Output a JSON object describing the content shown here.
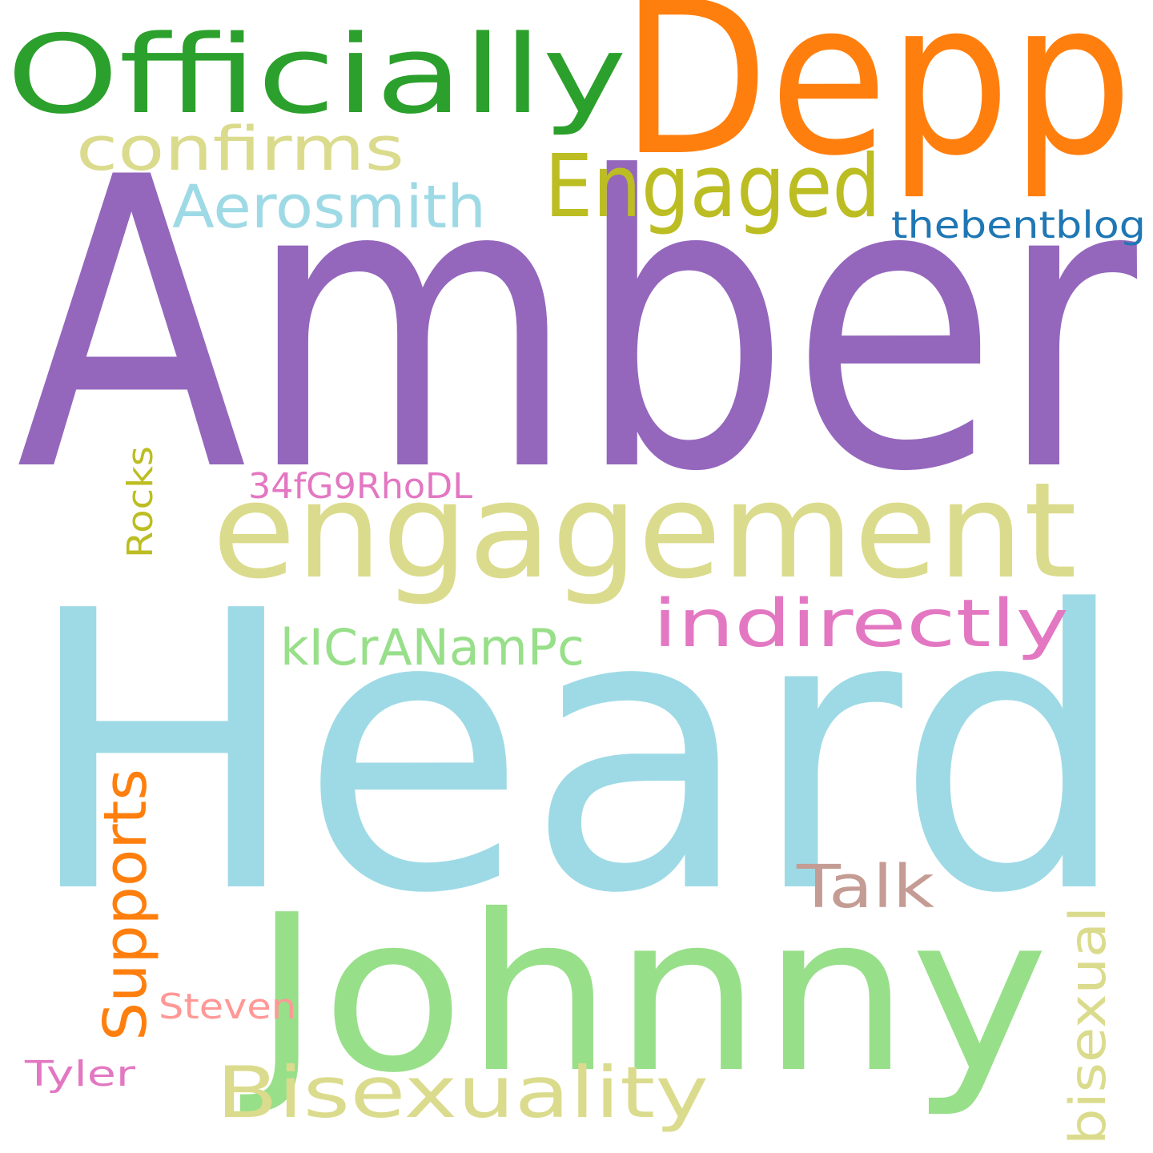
{
  "words": {
    "amber": {
      "text": "Amber",
      "color": "#9467bd"
    },
    "heard": {
      "text": "Heard",
      "color": "#9edae5"
    },
    "depp": {
      "text": "Depp",
      "color": "#ff7f0e"
    },
    "officially": {
      "text": "Officially",
      "color": "#2ca02c"
    },
    "johnny": {
      "text": "Johnny",
      "color": "#98df8a"
    },
    "engagement": {
      "text": "engagement",
      "color": "#dbdb8d"
    },
    "engaged": {
      "text": "Engaged",
      "color": "#bcbd22"
    },
    "confirms": {
      "text": "confirms",
      "color": "#dbdb8d"
    },
    "aerosmith": {
      "text": "Aerosmith",
      "color": "#9edae5"
    },
    "thebentblog": {
      "text": "thebentblog",
      "color": "#1f77b4"
    },
    "indirectly": {
      "text": "indirectly",
      "color": "#e377c2"
    },
    "kicranampc": {
      "text": "kICrANamPc",
      "color": "#98df8a"
    },
    "34fg9rhodl": {
      "text": "34fG9RhoDL",
      "color": "#e377c2"
    },
    "talk": {
      "text": "Talk",
      "color": "#c49c94"
    },
    "bisexuality": {
      "text": "Bisexuality",
      "color": "#dbdb8d"
    },
    "steven": {
      "text": "Steven",
      "color": "#ff9896"
    },
    "tyler": {
      "text": "Tyler",
      "color": "#e377c2"
    },
    "supports": {
      "text": "Supports",
      "color": "#ff7f0e"
    },
    "rocks": {
      "text": "Rocks",
      "color": "#bcbd22"
    },
    "bisexual": {
      "text": "bisexual",
      "color": "#dbdb8d"
    }
  }
}
